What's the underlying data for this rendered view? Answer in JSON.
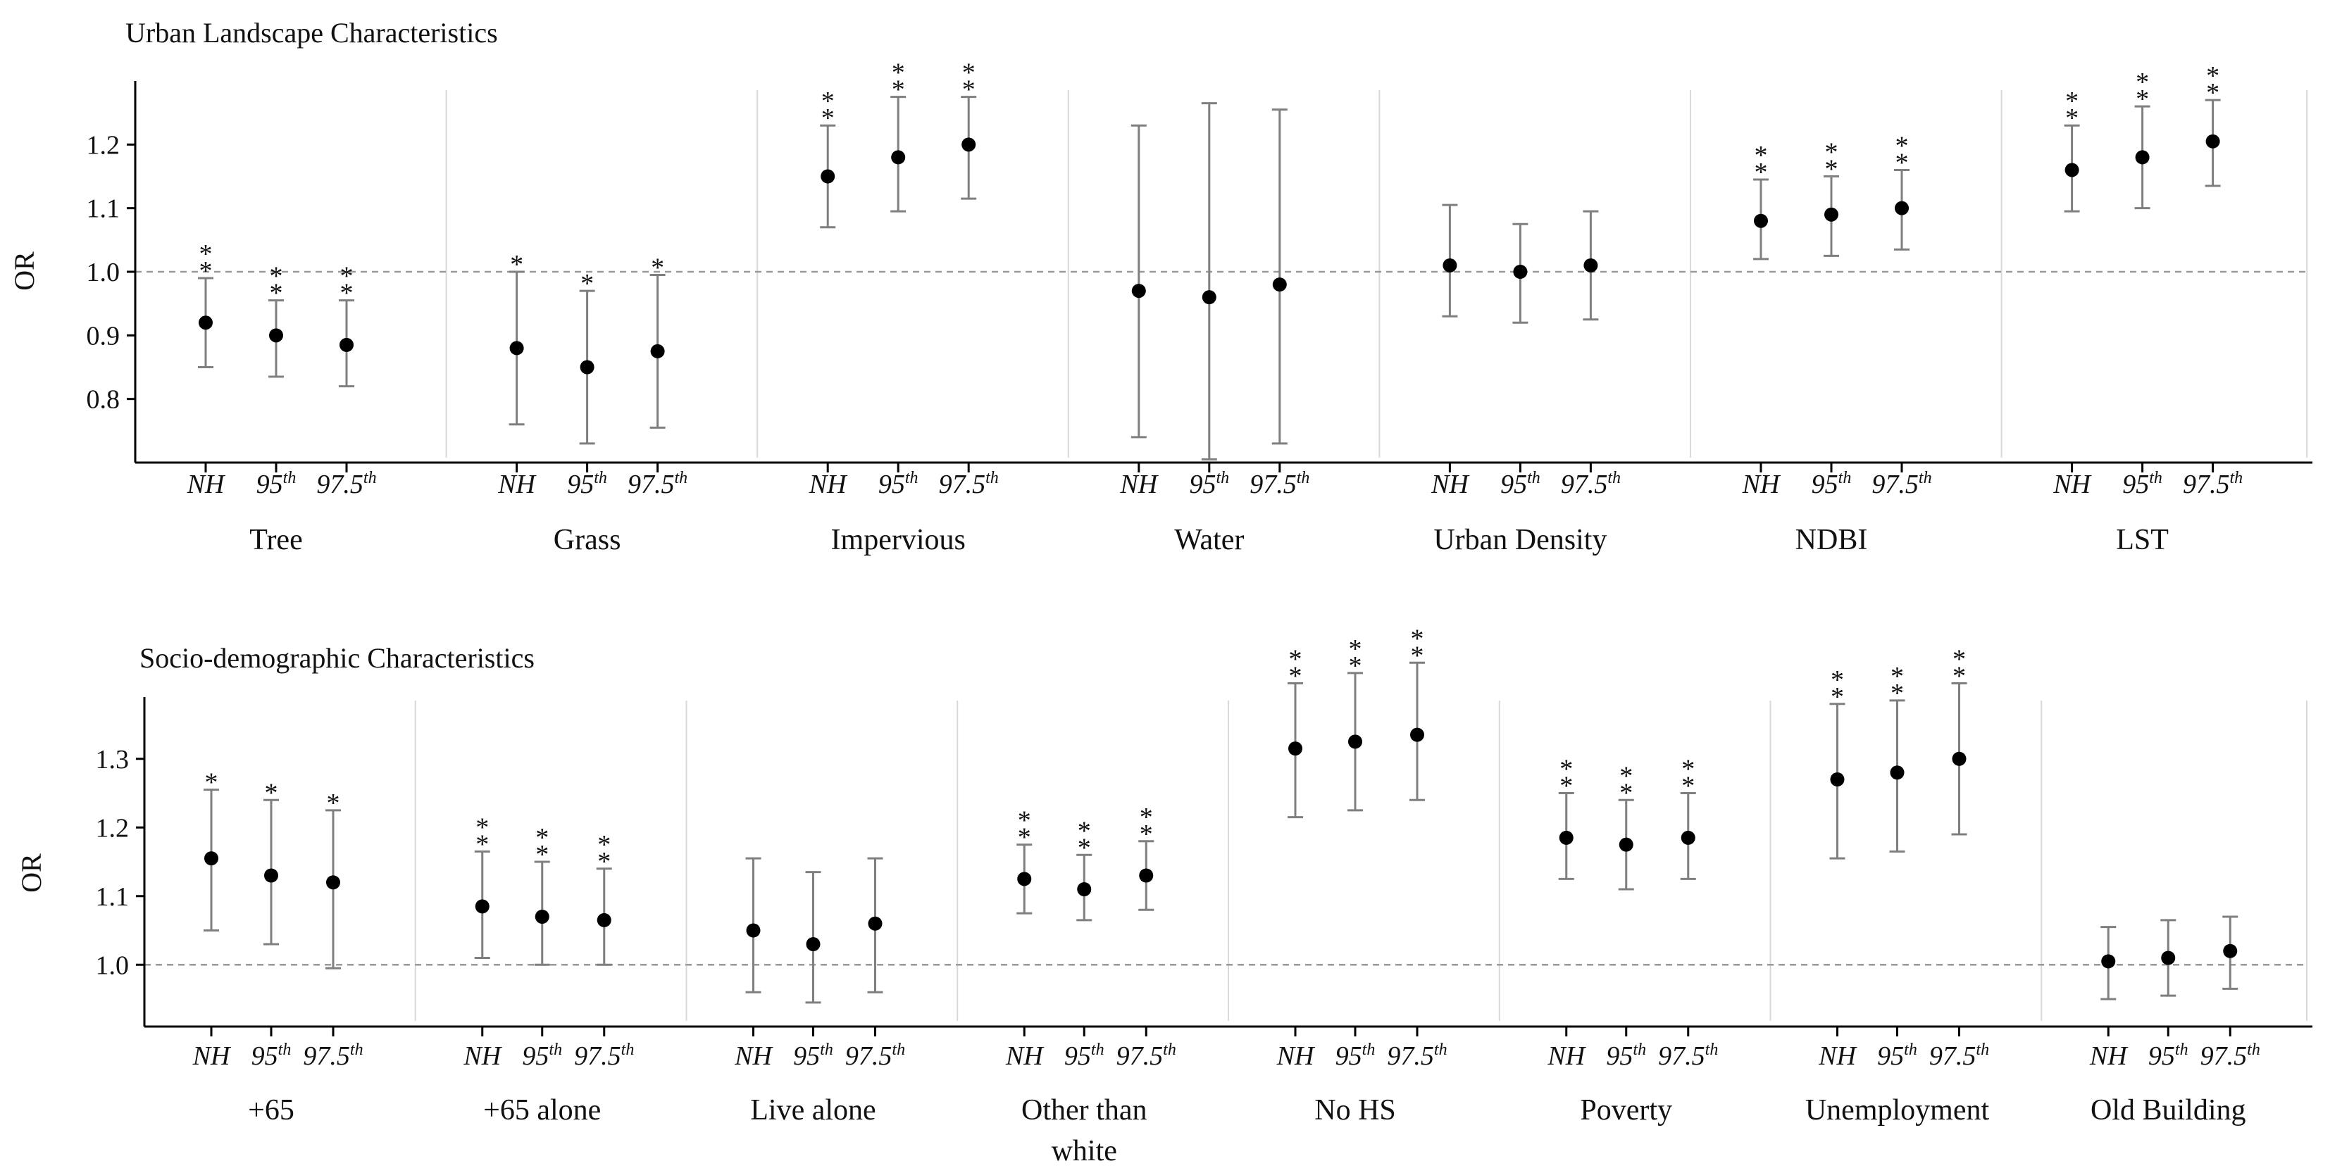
{
  "figure_colors": {
    "marker": "#000000",
    "errorbar": "#7f7f7f",
    "reference_line": "#9a9a9a",
    "separator": "#d9d9d9",
    "axis": "#000000"
  },
  "chart_data": [
    {
      "type": "errorbar",
      "title": "Urban Landscape Characteristics",
      "ylabel": "OR",
      "xlabel": "",
      "ylim": [
        0.7,
        1.3
      ],
      "yticks": [
        0.8,
        0.9,
        1.0,
        1.1,
        1.2
      ],
      "ytick_labels": [
        "0.8",
        "0.9",
        "1.0",
        "1.1",
        "1.2"
      ],
      "reference_line": 1.0,
      "thresholds": [
        "NH",
        "95th",
        "97.5th"
      ],
      "groups": [
        {
          "name": "Tree",
          "points": [
            {
              "threshold": "NH",
              "or": 0.92,
              "lower": 0.85,
              "upper": 0.99,
              "sig": "**"
            },
            {
              "threshold": "95th",
              "or": 0.9,
              "lower": 0.835,
              "upper": 0.955,
              "sig": "**"
            },
            {
              "threshold": "97.5th",
              "or": 0.885,
              "lower": 0.82,
              "upper": 0.955,
              "sig": "**"
            }
          ]
        },
        {
          "name": "Grass",
          "points": [
            {
              "threshold": "NH",
              "or": 0.88,
              "lower": 0.76,
              "upper": 1.0,
              "sig": "*"
            },
            {
              "threshold": "95th",
              "or": 0.85,
              "lower": 0.73,
              "upper": 0.97,
              "sig": "*"
            },
            {
              "threshold": "97.5th",
              "or": 0.875,
              "lower": 0.755,
              "upper": 0.995,
              "sig": "*"
            }
          ]
        },
        {
          "name": "Impervious",
          "points": [
            {
              "threshold": "NH",
              "or": 1.15,
              "lower": 1.07,
              "upper": 1.23,
              "sig": "**"
            },
            {
              "threshold": "95th",
              "or": 1.18,
              "lower": 1.095,
              "upper": 1.275,
              "sig": "**"
            },
            {
              "threshold": "97.5th",
              "or": 1.2,
              "lower": 1.115,
              "upper": 1.275,
              "sig": "**"
            }
          ]
        },
        {
          "name": "Water",
          "points": [
            {
              "threshold": "NH",
              "or": 0.97,
              "lower": 0.74,
              "upper": 1.23,
              "sig": ""
            },
            {
              "threshold": "95th",
              "or": 0.96,
              "lower": 0.705,
              "upper": 1.265,
              "sig": ""
            },
            {
              "threshold": "97.5th",
              "or": 0.98,
              "lower": 0.73,
              "upper": 1.255,
              "sig": ""
            }
          ]
        },
        {
          "name": "Urban Density",
          "points": [
            {
              "threshold": "NH",
              "or": 1.01,
              "lower": 0.93,
              "upper": 1.105,
              "sig": ""
            },
            {
              "threshold": "95th",
              "or": 1.0,
              "lower": 0.92,
              "upper": 1.075,
              "sig": ""
            },
            {
              "threshold": "97.5th",
              "or": 1.01,
              "lower": 0.925,
              "upper": 1.095,
              "sig": ""
            }
          ]
        },
        {
          "name": "NDBI",
          "points": [
            {
              "threshold": "NH",
              "or": 1.08,
              "lower": 1.02,
              "upper": 1.145,
              "sig": "**"
            },
            {
              "threshold": "95th",
              "or": 1.09,
              "lower": 1.025,
              "upper": 1.15,
              "sig": "**"
            },
            {
              "threshold": "97.5th",
              "or": 1.1,
              "lower": 1.035,
              "upper": 1.16,
              "sig": "**"
            }
          ]
        },
        {
          "name": "LST",
          "points": [
            {
              "threshold": "NH",
              "or": 1.16,
              "lower": 1.095,
              "upper": 1.23,
              "sig": "**"
            },
            {
              "threshold": "95th",
              "or": 1.18,
              "lower": 1.1,
              "upper": 1.26,
              "sig": "**"
            },
            {
              "threshold": "97.5th",
              "or": 1.205,
              "lower": 1.135,
              "upper": 1.27,
              "sig": "**"
            }
          ]
        }
      ]
    },
    {
      "type": "errorbar",
      "title": "Socio-demographic Characteristics",
      "ylabel": "OR",
      "xlabel": "",
      "ylim": [
        0.91,
        1.39
      ],
      "yticks": [
        1.0,
        1.1,
        1.2,
        1.3
      ],
      "ytick_labels": [
        "1.0",
        "1.1",
        "1.2",
        "1.3"
      ],
      "reference_line": 1.0,
      "thresholds": [
        "NH",
        "95th",
        "97.5th"
      ],
      "groups": [
        {
          "name": "+65",
          "points": [
            {
              "threshold": "NH",
              "or": 1.155,
              "lower": 1.05,
              "upper": 1.255,
              "sig": "*"
            },
            {
              "threshold": "95th",
              "or": 1.13,
              "lower": 1.03,
              "upper": 1.24,
              "sig": "*"
            },
            {
              "threshold": "97.5th",
              "or": 1.12,
              "lower": 0.995,
              "upper": 1.225,
              "sig": "*"
            }
          ]
        },
        {
          "name": "+65 alone",
          "points": [
            {
              "threshold": "NH",
              "or": 1.085,
              "lower": 1.01,
              "upper": 1.165,
              "sig": "**"
            },
            {
              "threshold": "95th",
              "or": 1.07,
              "lower": 1.0,
              "upper": 1.15,
              "sig": "**"
            },
            {
              "threshold": "97.5th",
              "or": 1.065,
              "lower": 1.0,
              "upper": 1.14,
              "sig": "**"
            }
          ]
        },
        {
          "name": "Live alone",
          "points": [
            {
              "threshold": "NH",
              "or": 1.05,
              "lower": 0.96,
              "upper": 1.155,
              "sig": ""
            },
            {
              "threshold": "95th",
              "or": 1.03,
              "lower": 0.945,
              "upper": 1.135,
              "sig": ""
            },
            {
              "threshold": "97.5th",
              "or": 1.06,
              "lower": 0.96,
              "upper": 1.155,
              "sig": ""
            }
          ]
        },
        {
          "name": "Other than white",
          "points": [
            {
              "threshold": "NH",
              "or": 1.125,
              "lower": 1.075,
              "upper": 1.175,
              "sig": "**"
            },
            {
              "threshold": "95th",
              "or": 1.11,
              "lower": 1.065,
              "upper": 1.16,
              "sig": "**"
            },
            {
              "threshold": "97.5th",
              "or": 1.13,
              "lower": 1.08,
              "upper": 1.18,
              "sig": "**"
            }
          ]
        },
        {
          "name": "No HS",
          "points": [
            {
              "threshold": "NH",
              "or": 1.315,
              "lower": 1.215,
              "upper": 1.41,
              "sig": "**"
            },
            {
              "threshold": "95th",
              "or": 1.325,
              "lower": 1.225,
              "upper": 1.425,
              "sig": "**"
            },
            {
              "threshold": "97.5th",
              "or": 1.335,
              "lower": 1.24,
              "upper": 1.44,
              "sig": "**"
            }
          ]
        },
        {
          "name": "Poverty",
          "points": [
            {
              "threshold": "NH",
              "or": 1.185,
              "lower": 1.125,
              "upper": 1.25,
              "sig": "**"
            },
            {
              "threshold": "95th",
              "or": 1.175,
              "lower": 1.11,
              "upper": 1.24,
              "sig": "**"
            },
            {
              "threshold": "97.5th",
              "or": 1.185,
              "lower": 1.125,
              "upper": 1.25,
              "sig": "**"
            }
          ]
        },
        {
          "name": "Unemployment",
          "points": [
            {
              "threshold": "NH",
              "or": 1.27,
              "lower": 1.155,
              "upper": 1.38,
              "sig": "**"
            },
            {
              "threshold": "95th",
              "or": 1.28,
              "lower": 1.165,
              "upper": 1.385,
              "sig": "**"
            },
            {
              "threshold": "97.5th",
              "or": 1.3,
              "lower": 1.19,
              "upper": 1.41,
              "sig": "**"
            }
          ]
        },
        {
          "name": "Old Building",
          "points": [
            {
              "threshold": "NH",
              "or": 1.005,
              "lower": 0.95,
              "upper": 1.055,
              "sig": ""
            },
            {
              "threshold": "95th",
              "or": 1.01,
              "lower": 0.955,
              "upper": 1.065,
              "sig": ""
            },
            {
              "threshold": "97.5th",
              "or": 1.02,
              "lower": 0.965,
              "upper": 1.07,
              "sig": ""
            }
          ]
        }
      ]
    }
  ]
}
